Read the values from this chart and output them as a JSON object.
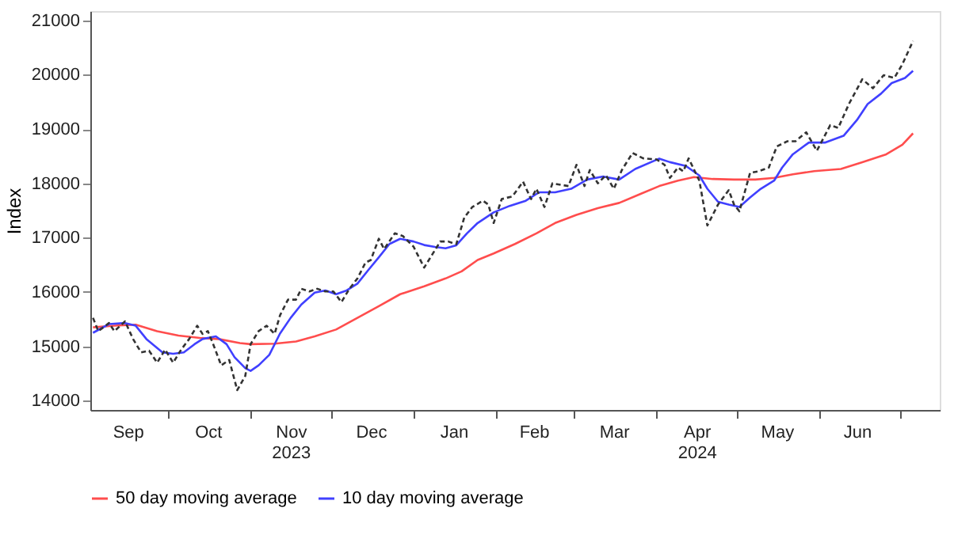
{
  "chart_data": {
    "type": "line",
    "ylabel": "Index",
    "xlim": [
      "2023-09-02",
      "2024-07-16"
    ],
    "ylim": [
      13830,
      21170
    ],
    "yticks": [
      14000,
      15000,
      16000,
      17000,
      18000,
      19000,
      20000,
      21000
    ],
    "xticks": [
      {
        "value": "2023-10-01",
        "label": null
      },
      {
        "value": "2023-11-01",
        "label": null
      },
      {
        "value": "2023-12-01",
        "label": null
      },
      {
        "value": "2024-01-01",
        "label": null
      },
      {
        "value": "2024-02-01",
        "label": null
      },
      {
        "value": "2024-03-01",
        "label": null
      },
      {
        "value": "2024-04-01",
        "label": null
      },
      {
        "value": "2024-05-01",
        "label": null
      },
      {
        "value": "2024-06-01",
        "label": null
      },
      {
        "value": "2024-07-01",
        "label": null
      },
      {
        "value": "2023-09-16",
        "label": "Sep"
      },
      {
        "value": "2023-10-16",
        "label": "Oct"
      },
      {
        "value": "2023-11-16",
        "label": "Nov\n2023"
      },
      {
        "value": "2023-12-16",
        "label": "Dec"
      },
      {
        "value": "2024-01-16",
        "label": "Jan"
      },
      {
        "value": "2024-02-15",
        "label": "Feb"
      },
      {
        "value": "2024-03-16",
        "label": "Mar"
      },
      {
        "value": "2024-04-16",
        "label": "Apr\n2024"
      },
      {
        "value": "2024-05-16",
        "label": "May"
      },
      {
        "value": "2024-06-15",
        "label": "Jun"
      }
    ],
    "grid": false,
    "legend": "bottom",
    "marker": "none",
    "series": [
      {
        "name": "50 day moving average",
        "color": "#ff4d4d",
        "line_style": "solid",
        "x": [
          "2023-09-03",
          "2023-09-11",
          "2023-09-19",
          "2023-09-27",
          "2023-10-05",
          "2023-10-13",
          "2023-10-20",
          "2023-10-28",
          "2023-11-01",
          "2023-11-10",
          "2023-11-18",
          "2023-11-25",
          "2023-12-03",
          "2023-12-11",
          "2023-12-19",
          "2023-12-27",
          "2024-01-05",
          "2024-01-13",
          "2024-01-19",
          "2024-01-25",
          "2024-01-31",
          "2024-02-08",
          "2024-02-16",
          "2024-02-23",
          "2024-03-02",
          "2024-03-10",
          "2024-03-18",
          "2024-03-26",
          "2024-04-02",
          "2024-04-09",
          "2024-04-15",
          "2024-04-22",
          "2024-04-30",
          "2024-05-08",
          "2024-05-15",
          "2024-05-22",
          "2024-05-30",
          "2024-06-09",
          "2024-06-17",
          "2024-06-26",
          "2024-07-02",
          "2024-07-06"
        ],
        "values": [
          15350,
          15380,
          15400,
          15280,
          15200,
          15155,
          15135,
          15060,
          15040,
          15050,
          15090,
          15185,
          15310,
          15525,
          15740,
          15960,
          16105,
          16250,
          16380,
          16590,
          16710,
          16885,
          17080,
          17270,
          17420,
          17545,
          17640,
          17805,
          17950,
          18050,
          18115,
          18080,
          18070,
          18070,
          18100,
          18165,
          18225,
          18265,
          18390,
          18535,
          18710,
          18920
        ]
      },
      {
        "name": "10 day moving average",
        "color": "#4040ff",
        "line_style": "solid",
        "x": [
          "2023-09-03",
          "2023-09-09",
          "2023-09-15",
          "2023-09-19",
          "2023-09-23",
          "2023-09-29",
          "2023-10-03",
          "2023-10-07",
          "2023-10-11",
          "2023-10-14",
          "2023-10-19",
          "2023-10-23",
          "2023-10-26",
          "2023-10-30",
          "2023-11-01",
          "2023-11-04",
          "2023-11-08",
          "2023-11-12",
          "2023-11-16",
          "2023-11-20",
          "2023-11-25",
          "2023-11-29",
          "2023-12-03",
          "2023-12-07",
          "2023-12-11",
          "2023-12-15",
          "2023-12-19",
          "2023-12-23",
          "2023-12-27",
          "2024-01-01",
          "2024-01-05",
          "2024-01-09",
          "2024-01-13",
          "2024-01-17",
          "2024-01-21",
          "2024-01-25",
          "2024-01-31",
          "2024-02-06",
          "2024-02-12",
          "2024-02-17",
          "2024-02-23",
          "2024-02-29",
          "2024-03-06",
          "2024-03-12",
          "2024-03-18",
          "2024-03-24",
          "2024-04-02",
          "2024-04-06",
          "2024-04-12",
          "2024-04-17",
          "2024-04-20",
          "2024-04-24",
          "2024-04-28",
          "2024-05-02",
          "2024-05-06",
          "2024-05-10",
          "2024-05-15",
          "2024-05-18",
          "2024-05-22",
          "2024-05-28",
          "2024-06-03",
          "2024-06-10",
          "2024-06-15",
          "2024-06-19",
          "2024-06-24",
          "2024-06-28",
          "2024-07-03",
          "2024-07-06"
        ],
        "values": [
          15250,
          15410,
          15430,
          15380,
          15135,
          14890,
          14865,
          14890,
          15040,
          15135,
          15185,
          15040,
          14800,
          14600,
          14550,
          14650,
          14845,
          15235,
          15525,
          15770,
          15990,
          16030,
          15960,
          16030,
          16155,
          16400,
          16640,
          16885,
          16980,
          16930,
          16865,
          16830,
          16805,
          16860,
          17080,
          17270,
          17465,
          17585,
          17680,
          17835,
          17835,
          17900,
          18070,
          18125,
          18070,
          18265,
          18455,
          18390,
          18320,
          18145,
          17900,
          17660,
          17610,
          17565,
          17740,
          17900,
          18050,
          18290,
          18535,
          18750,
          18750,
          18875,
          19165,
          19460,
          19650,
          19845,
          19940,
          20070
        ]
      },
      {
        "color": "#333333",
        "line_style": "dashed",
        "x": [
          "2023-09-03",
          "2023-09-05",
          "2023-09-09",
          "2023-09-11",
          "2023-09-15",
          "2023-09-18",
          "2023-09-21",
          "2023-09-24",
          "2023-09-27",
          "2023-09-30",
          "2023-10-03",
          "2023-10-06",
          "2023-10-09",
          "2023-10-12",
          "2023-10-14",
          "2023-10-16",
          "2023-10-18",
          "2023-10-21",
          "2023-10-24",
          "2023-10-27",
          "2023-10-30",
          "2023-11-01",
          "2023-11-04",
          "2023-11-07",
          "2023-11-10",
          "2023-11-12",
          "2023-11-15",
          "2023-11-18",
          "2023-11-20",
          "2023-11-23",
          "2023-11-26",
          "2023-11-29",
          "2023-12-02",
          "2023-12-05",
          "2023-12-08",
          "2023-12-11",
          "2023-12-14",
          "2023-12-16",
          "2023-12-19",
          "2023-12-21",
          "2023-12-25",
          "2023-12-28",
          "2024-01-01",
          "2024-01-05",
          "2024-01-08",
          "2024-01-11",
          "2024-01-14",
          "2024-01-17",
          "2024-01-20",
          "2024-01-23",
          "2024-01-27",
          "2024-01-29",
          "2024-01-31",
          "2024-02-03",
          "2024-02-07",
          "2024-02-11",
          "2024-02-14",
          "2024-02-16",
          "2024-02-19",
          "2024-02-22",
          "2024-02-28",
          "2024-03-02",
          "2024-03-05",
          "2024-03-07",
          "2024-03-10",
          "2024-03-13",
          "2024-03-16",
          "2024-03-19",
          "2024-03-23",
          "2024-03-27",
          "2024-04-01",
          "2024-04-04",
          "2024-04-06",
          "2024-04-09",
          "2024-04-11",
          "2024-04-13",
          "2024-04-17",
          "2024-04-20",
          "2024-04-24",
          "2024-04-28",
          "2024-04-30",
          "2024-05-02",
          "2024-05-06",
          "2024-05-09",
          "2024-05-13",
          "2024-05-16",
          "2024-05-20",
          "2024-05-23",
          "2024-05-27",
          "2024-05-31",
          "2024-06-05",
          "2024-06-08",
          "2024-06-12",
          "2024-06-17",
          "2024-06-21",
          "2024-06-25",
          "2024-06-29",
          "2024-07-02",
          "2024-07-06"
        ],
        "values": [
          15525,
          15280,
          15430,
          15280,
          15460,
          15135,
          14890,
          14920,
          14700,
          14940,
          14700,
          14940,
          15135,
          15380,
          15230,
          15280,
          15040,
          14650,
          14750,
          14195,
          14455,
          15040,
          15280,
          15380,
          15230,
          15570,
          15860,
          15860,
          16060,
          16010,
          16060,
          16010,
          16010,
          15815,
          16060,
          16250,
          16540,
          16590,
          16980,
          16790,
          17080,
          17030,
          16835,
          16450,
          16690,
          16930,
          16930,
          16880,
          17370,
          17565,
          17680,
          17610,
          17270,
          17710,
          17760,
          18030,
          17710,
          17900,
          17565,
          18000,
          17950,
          18340,
          17950,
          18245,
          18000,
          18150,
          17900,
          18245,
          18560,
          18460,
          18440,
          18340,
          18100,
          18290,
          18220,
          18460,
          18050,
          17225,
          17610,
          17875,
          17610,
          17485,
          18195,
          18220,
          18290,
          18680,
          18775,
          18775,
          18940,
          18600,
          19070,
          19020,
          19460,
          19915,
          19750,
          19990,
          19940,
          20190,
          20620
        ]
      }
    ]
  }
}
